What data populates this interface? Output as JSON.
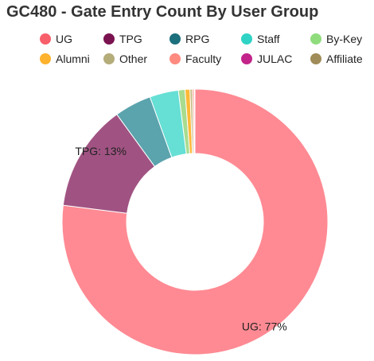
{
  "chart_data": {
    "type": "pie",
    "title": "GC480 - Gate Entry Count By User Group",
    "legend_position": "top",
    "categories": [
      "UG",
      "TPG",
      "RPG",
      "Staff",
      "By-Key",
      "Alumni",
      "Other",
      "Faculty",
      "JULAC",
      "Affiliate"
    ],
    "values": [
      77,
      13,
      4.5,
      3.5,
      0.8,
      0.6,
      0.3,
      0.2,
      0.05,
      0.05
    ],
    "colors": [
      "#ff8a93",
      "#a05382",
      "#5ba3ad",
      "#66dfd5",
      "#a8dc90",
      "#ffb938",
      "#c8bc85",
      "#ff9c8f",
      "#c22a8e",
      "#a79a5e"
    ],
    "legend_colors": [
      "#f75f6a",
      "#7a1250",
      "#1c6f7c",
      "#2ed3c5",
      "#8fdc7c",
      "#ffb22e",
      "#b4ad7a",
      "#ff8a80",
      "#c2248a",
      "#a08c58"
    ],
    "data_labels": [
      {
        "index": 0,
        "text": "UG: 77%"
      },
      {
        "index": 1,
        "text": "TPG: 13%"
      }
    ]
  }
}
